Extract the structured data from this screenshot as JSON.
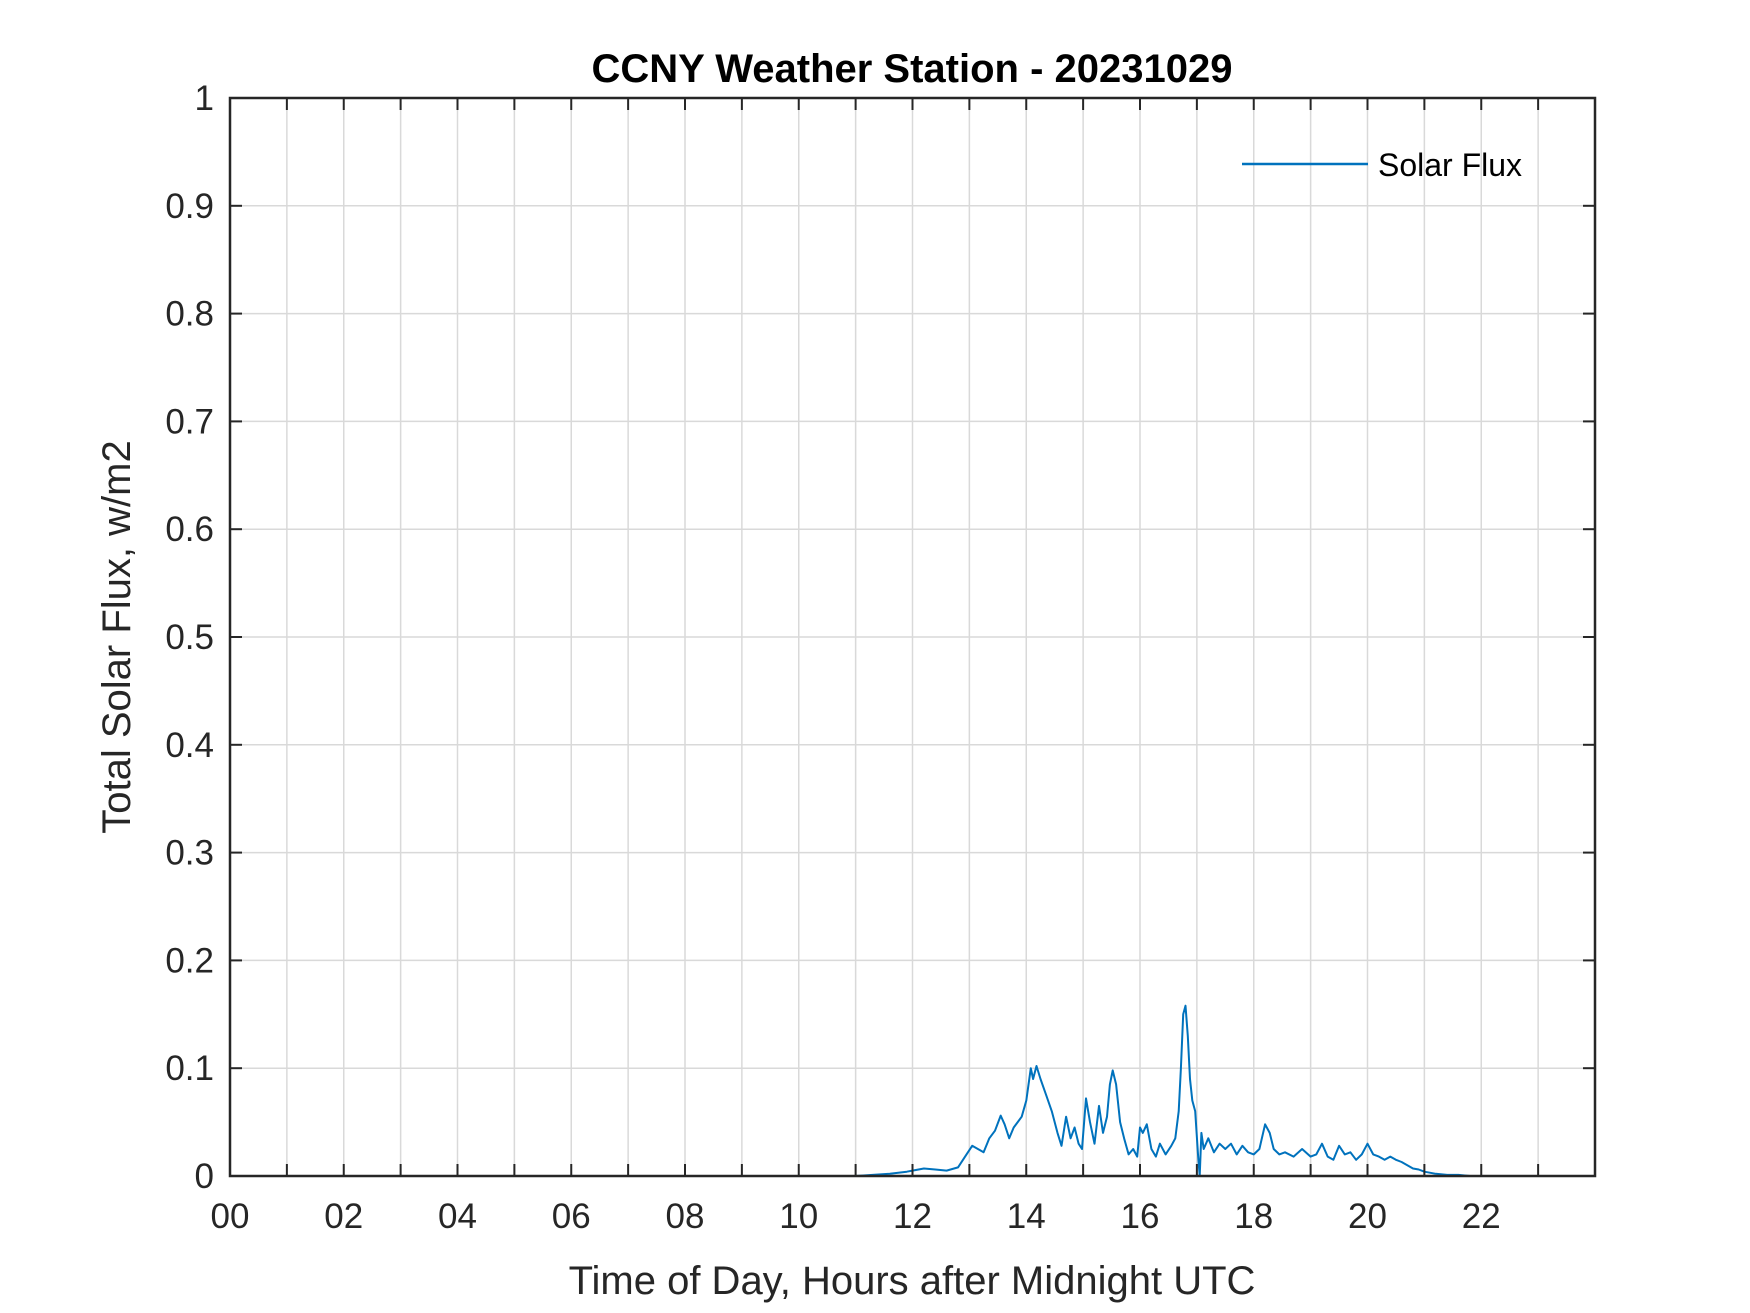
{
  "chart_data": {
    "type": "line",
    "title": "CCNY Weather Station - 20231029",
    "xlabel": "Time of Day, Hours after Midnight UTC",
    "ylabel": "Total Solar Flux, w/m2",
    "xlim": [
      0,
      24
    ],
    "ylim": [
      0,
      1
    ],
    "xticks": [
      0,
      2,
      4,
      6,
      8,
      10,
      12,
      14,
      16,
      18,
      20,
      22
    ],
    "xtick_labels": [
      "00",
      "02",
      "04",
      "06",
      "08",
      "10",
      "12",
      "14",
      "16",
      "18",
      "20",
      "22"
    ],
    "yticks": [
      0,
      0.1,
      0.2,
      0.3,
      0.4,
      0.5,
      0.6,
      0.7,
      0.8,
      0.9,
      1
    ],
    "ytick_labels": [
      "0",
      "0.1",
      "0.2",
      "0.3",
      "0.4",
      "0.5",
      "0.6",
      "0.7",
      "0.8",
      "0.9",
      "1"
    ],
    "grid": true,
    "legend_position": "top-right",
    "series": [
      {
        "name": "Solar Flux",
        "color": "#0072BD",
        "x": [
          0,
          11.0,
          11.3,
          11.6,
          11.9,
          12.0,
          12.2,
          12.4,
          12.6,
          12.8,
          12.95,
          13.05,
          13.15,
          13.25,
          13.35,
          13.45,
          13.55,
          13.62,
          13.7,
          13.78,
          13.85,
          13.92,
          14.0,
          14.08,
          14.12,
          14.18,
          14.25,
          14.35,
          14.45,
          14.55,
          14.62,
          14.7,
          14.78,
          14.85,
          14.92,
          14.98,
          15.05,
          15.12,
          15.2,
          15.28,
          15.35,
          15.42,
          15.47,
          15.52,
          15.58,
          15.65,
          15.72,
          15.8,
          15.88,
          15.95,
          16.0,
          16.05,
          16.12,
          16.2,
          16.28,
          16.35,
          16.45,
          16.55,
          16.62,
          16.68,
          16.72,
          16.76,
          16.8,
          16.84,
          16.88,
          16.92,
          16.97,
          17.02,
          17.05,
          17.08,
          17.12,
          17.2,
          17.3,
          17.4,
          17.5,
          17.6,
          17.7,
          17.8,
          17.9,
          18.0,
          18.1,
          18.2,
          18.28,
          18.35,
          18.45,
          18.55,
          18.7,
          18.85,
          19.0,
          19.1,
          19.2,
          19.3,
          19.4,
          19.5,
          19.6,
          19.7,
          19.8,
          19.9,
          20.0,
          20.1,
          20.2,
          20.3,
          20.4,
          20.5,
          20.6,
          20.7,
          20.8,
          20.9,
          21.0,
          21.2,
          21.4,
          21.6,
          21.8,
          22.0,
          24.0
        ],
        "y": [
          0,
          0,
          0.001,
          0.002,
          0.004,
          0.005,
          0.007,
          0.006,
          0.005,
          0.008,
          0.02,
          0.028,
          0.025,
          0.022,
          0.035,
          0.042,
          0.056,
          0.048,
          0.035,
          0.045,
          0.05,
          0.055,
          0.07,
          0.1,
          0.09,
          0.102,
          0.09,
          0.075,
          0.06,
          0.04,
          0.028,
          0.055,
          0.035,
          0.045,
          0.03,
          0.025,
          0.072,
          0.05,
          0.03,
          0.065,
          0.04,
          0.055,
          0.085,
          0.098,
          0.085,
          0.05,
          0.035,
          0.02,
          0.025,
          0.018,
          0.045,
          0.04,
          0.048,
          0.025,
          0.018,
          0.03,
          0.02,
          0.028,
          0.035,
          0.06,
          0.1,
          0.15,
          0.158,
          0.13,
          0.09,
          0.07,
          0.06,
          0.02,
          0.0,
          0.04,
          0.025,
          0.035,
          0.022,
          0.03,
          0.025,
          0.03,
          0.02,
          0.028,
          0.022,
          0.02,
          0.025,
          0.048,
          0.04,
          0.025,
          0.02,
          0.022,
          0.018,
          0.025,
          0.018,
          0.02,
          0.03,
          0.018,
          0.015,
          0.028,
          0.02,
          0.022,
          0.015,
          0.02,
          0.03,
          0.02,
          0.018,
          0.015,
          0.018,
          0.015,
          0.013,
          0.01,
          0.007,
          0.006,
          0.004,
          0.002,
          0.001,
          0.001,
          0.0,
          0.0,
          0.0
        ]
      }
    ]
  }
}
